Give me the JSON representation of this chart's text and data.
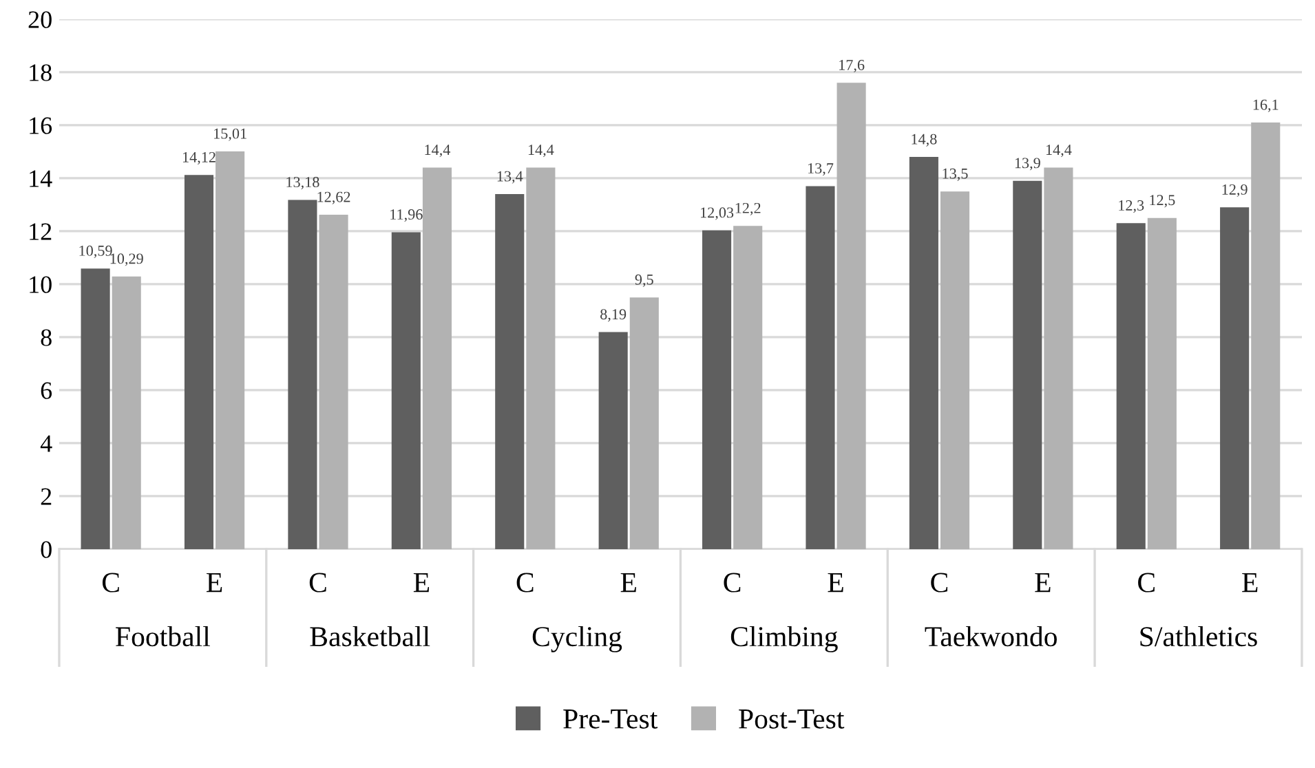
{
  "chart_data": {
    "type": "bar",
    "categories": [
      "C",
      "E",
      "C",
      "E",
      "C",
      "E",
      "C",
      "E",
      "C",
      "E",
      "C",
      "E"
    ],
    "series": [
      {
        "name": "Pre-Test",
        "color": "#5f5f5f",
        "values": [
          10.59,
          14.12,
          13.18,
          11.96,
          13.4,
          8.19,
          12.03,
          13.7,
          14.8,
          13.9,
          12.3,
          12.9
        ],
        "value_labels": [
          "10,59",
          "14,12",
          "13,18",
          "11,96",
          "13,4",
          "8,19",
          "12,03",
          "13,7",
          "14,8",
          "13,9",
          "12,3",
          "12,9"
        ]
      },
      {
        "name": "Post-Test",
        "color": "#b2b2b2",
        "values": [
          10.29,
          15.01,
          12.62,
          14.4,
          14.4,
          9.5,
          12.2,
          17.6,
          13.5,
          14.4,
          12.5,
          16.1
        ],
        "value_labels": [
          "10,29",
          "15,01",
          "12,62",
          "14,4",
          "14,4",
          "9,5",
          "12,2",
          "17,6",
          "13,5",
          "14,4",
          "12,5",
          "16,1"
        ]
      }
    ],
    "annotations": [
      "Football",
      "Basketball",
      "Cycling",
      "Climbing",
      "Taekwondo",
      "S/athletics"
    ],
    "ylim": [
      0,
      20
    ],
    "yticks": [
      0,
      2,
      4,
      6,
      8,
      10,
      12,
      14,
      16,
      18,
      20
    ],
    "grid": "y",
    "legend": "bottom"
  }
}
